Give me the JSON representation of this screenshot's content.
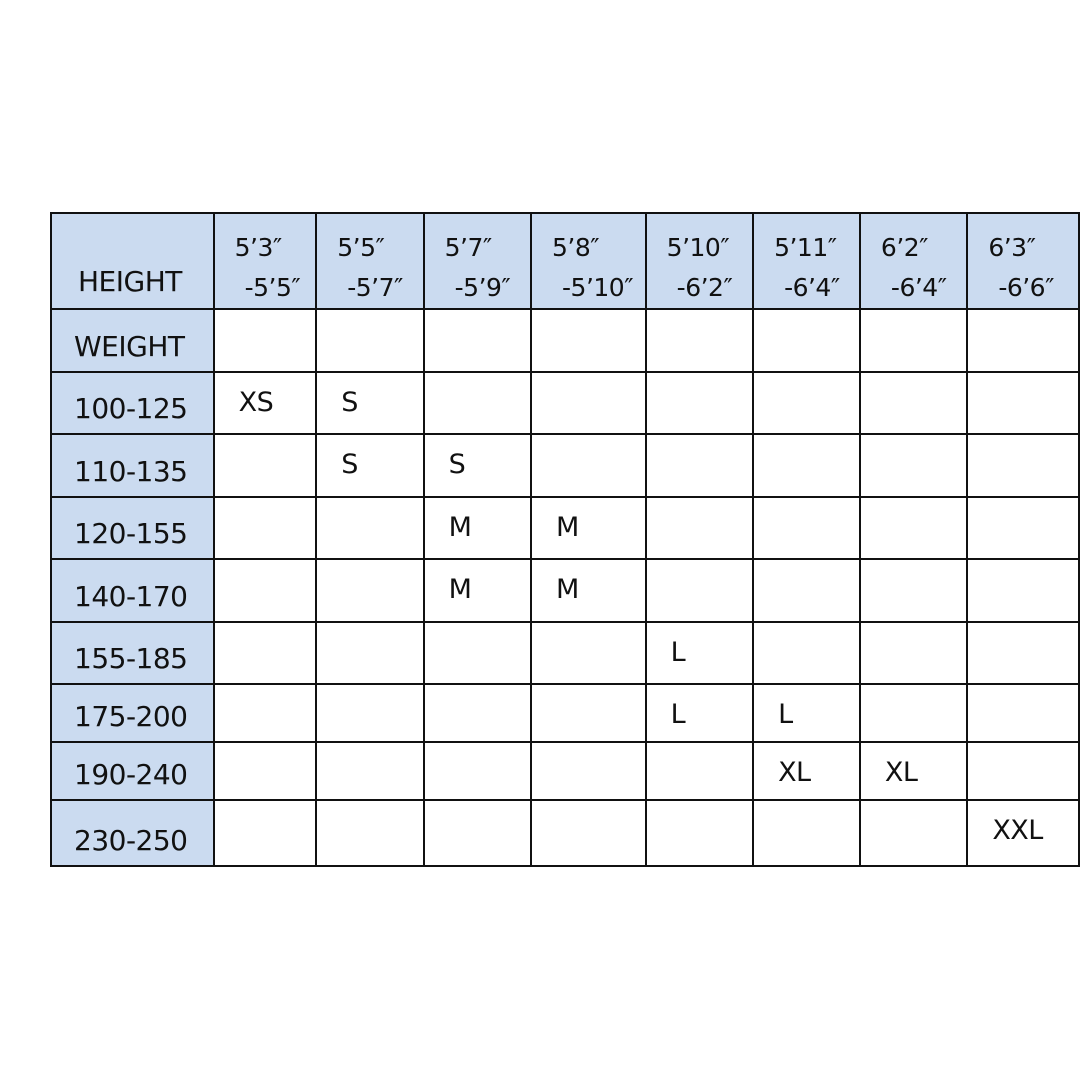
{
  "colors": {
    "header_fill": "#cbdbf0",
    "border": "#111111"
  },
  "table": {
    "corner_label": "HEIGHT",
    "columns": [
      {
        "from": "5’3″",
        "to": "-5’5″"
      },
      {
        "from": "5’5″",
        "to": "-5’7″"
      },
      {
        "from": "5’7″",
        "to": "-5’9″"
      },
      {
        "from": "5’8″",
        "to": "-5’10″"
      },
      {
        "from": "5’10″",
        "to": "-6’2″"
      },
      {
        "from": "5’11″",
        "to": "-6’4″"
      },
      {
        "from": "6’2″",
        "to": "-6’4″"
      },
      {
        "from": "6’3″",
        "to": "-6’6″"
      }
    ],
    "rows": [
      {
        "label": "WEIGHT",
        "cells": [
          "",
          "",
          "",
          "",
          "",
          "",
          "",
          ""
        ]
      },
      {
        "label": "100-125",
        "cells": [
          "XS",
          "S",
          "",
          "",
          "",
          "",
          "",
          ""
        ]
      },
      {
        "label": "110-135",
        "cells": [
          "",
          "S",
          "S",
          "",
          "",
          "",
          "",
          ""
        ]
      },
      {
        "label": "120-155",
        "cells": [
          "",
          "",
          "M",
          "M",
          "",
          "",
          "",
          ""
        ]
      },
      {
        "label": "140-170",
        "cells": [
          "",
          "",
          "M",
          "M",
          "",
          "",
          "",
          ""
        ]
      },
      {
        "label": "155-185",
        "cells": [
          "",
          "",
          "",
          "",
          "L",
          "",
          "",
          ""
        ]
      },
      {
        "label": "175-200",
        "cells": [
          "",
          "",
          "",
          "",
          "L",
          "L",
          "",
          ""
        ]
      },
      {
        "label": "190-240",
        "cells": [
          "",
          "",
          "",
          "",
          "",
          "XL",
          "XL",
          ""
        ]
      },
      {
        "label": "230-250",
        "cells": [
          "",
          "",
          "",
          "",
          "",
          "",
          "",
          "XXL"
        ]
      }
    ]
  }
}
